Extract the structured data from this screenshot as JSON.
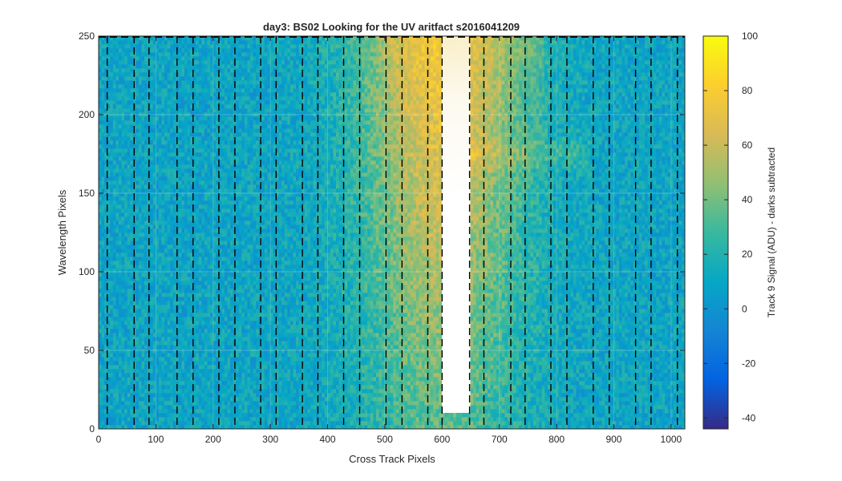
{
  "chart_data": {
    "type": "heatmap",
    "title": "day3: BS02  Looking for the UV aritfact  s2016041209",
    "xlabel": "Cross Track Pixels",
    "ylabel": "Wavelength Pixels",
    "xlim": [
      0,
      1024
    ],
    "ylim": [
      0,
      250
    ],
    "xticks": [
      0,
      100,
      200,
      300,
      400,
      500,
      600,
      700,
      800,
      900,
      1000
    ],
    "yticks": [
      0,
      50,
      100,
      150,
      200,
      250
    ],
    "grid": true,
    "colorbar": {
      "label": "Track 9 Signal (ADU) - darks subtracted",
      "limits": [
        -44,
        100
      ],
      "ticks": [
        -40,
        -20,
        0,
        20,
        40,
        60,
        80,
        100
      ],
      "colormap": "parula",
      "colors": [
        "#352a87",
        "#0363e1",
        "#1485d4",
        "#06a7c6",
        "#38b99e",
        "#92bf73",
        "#d9ba56",
        "#fcce2e",
        "#f9fb0e"
      ]
    },
    "dashed_vertical_lines_x": [
      15,
      62,
      88,
      137,
      165,
      210,
      238,
      283,
      310,
      356,
      383,
      428,
      456,
      502,
      530,
      575,
      600,
      648,
      673,
      720,
      745,
      790,
      818,
      864,
      892,
      938,
      965,
      1011
    ],
    "masked_region": {
      "x": [
        600,
        648
      ],
      "y": [
        10,
        250
      ]
    },
    "signal_summary": {
      "background_level": 10,
      "peak_level": 80,
      "peak_center_x": 600
    }
  }
}
